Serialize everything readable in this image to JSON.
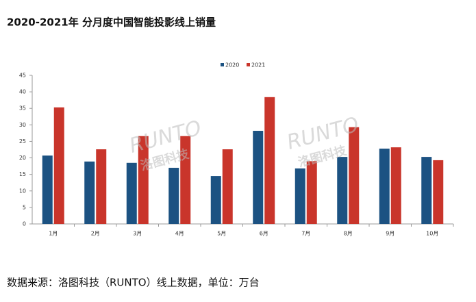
{
  "chart_data": {
    "type": "bar",
    "title": "2020-2021年 分月度中国智能投影线上销量",
    "source": "数据来源：洛图科技（RUNTO）线上数据，单位：万台",
    "watermark": [
      "RUNTO",
      "洛图科技"
    ],
    "categories": [
      "1月",
      "2月",
      "3月",
      "4月",
      "5月",
      "6月",
      "7月",
      "8月",
      "9月",
      "10月"
    ],
    "series": [
      {
        "name": "2020",
        "color": "#1c5282",
        "values": [
          20.7,
          18.9,
          18.5,
          17.0,
          14.5,
          28.2,
          16.8,
          20.3,
          22.8,
          20.3
        ]
      },
      {
        "name": "2021",
        "color": "#c9352b",
        "values": [
          35.3,
          22.6,
          26.6,
          26.6,
          22.6,
          38.4,
          19.0,
          29.3,
          23.2,
          19.3
        ]
      }
    ],
    "ylim": [
      0,
      45
    ],
    "yticks": [
      0,
      5,
      10,
      15,
      20,
      25,
      30,
      35,
      40,
      45
    ],
    "grid": false,
    "legend": "top"
  }
}
